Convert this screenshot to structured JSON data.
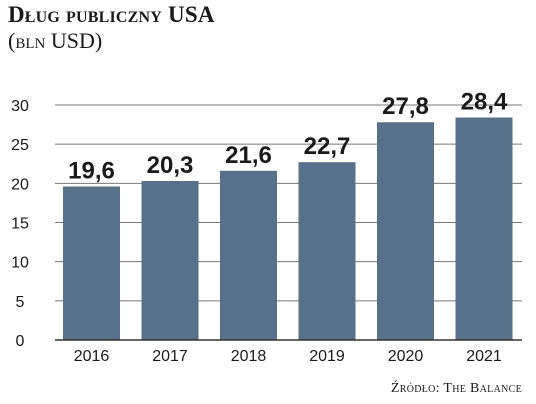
{
  "header": {
    "title": "Dług publiczny USA",
    "subtitle": "(bln USD)"
  },
  "source": "Źródło: The Balance",
  "colors": {
    "bar": "#57718a",
    "grid": "#777777",
    "text": "#1a1a1a"
  },
  "chart_data": {
    "type": "bar",
    "title": "Dług publiczny USA",
    "subtitle": "(bln USD)",
    "xlabel": "",
    "ylabel": "",
    "categories": [
      "2016",
      "2017",
      "2018",
      "2019",
      "2020",
      "2021"
    ],
    "values": [
      19.6,
      20.3,
      21.6,
      22.7,
      27.8,
      28.4
    ],
    "value_labels": [
      "19,6",
      "20,3",
      "21,6",
      "22,7",
      "27,8",
      "28,4"
    ],
    "ylim": [
      0,
      30
    ],
    "yticks": [
      0,
      5,
      10,
      15,
      20,
      25,
      30
    ],
    "grid": true,
    "legend": "none"
  }
}
